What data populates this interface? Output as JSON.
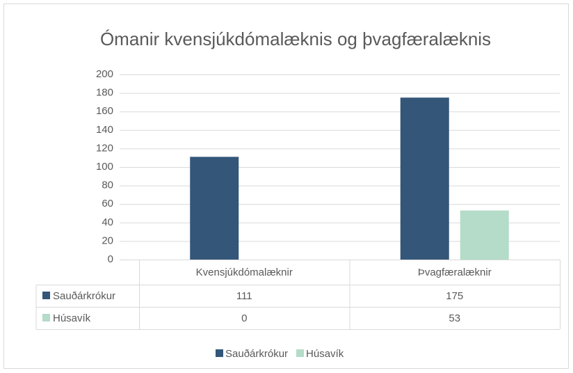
{
  "chart_data": {
    "type": "bar",
    "title": "Ómanir kvensjúkdómalæknis og þvagfæralæknis",
    "categories": [
      "Kvensjúkdómalæknir",
      "Þvagfæralæknir"
    ],
    "series": [
      {
        "name": "Sauðárkrókur",
        "color": "#335679",
        "values": [
          111,
          175
        ]
      },
      {
        "name": "Húsavík",
        "color": "#b4dcc8",
        "values": [
          0,
          53
        ]
      }
    ],
    "ylim": [
      0,
      200
    ],
    "yticks": [
      0,
      20,
      40,
      60,
      80,
      100,
      120,
      140,
      160,
      180,
      200
    ],
    "grid": true,
    "legend": "bottom"
  }
}
